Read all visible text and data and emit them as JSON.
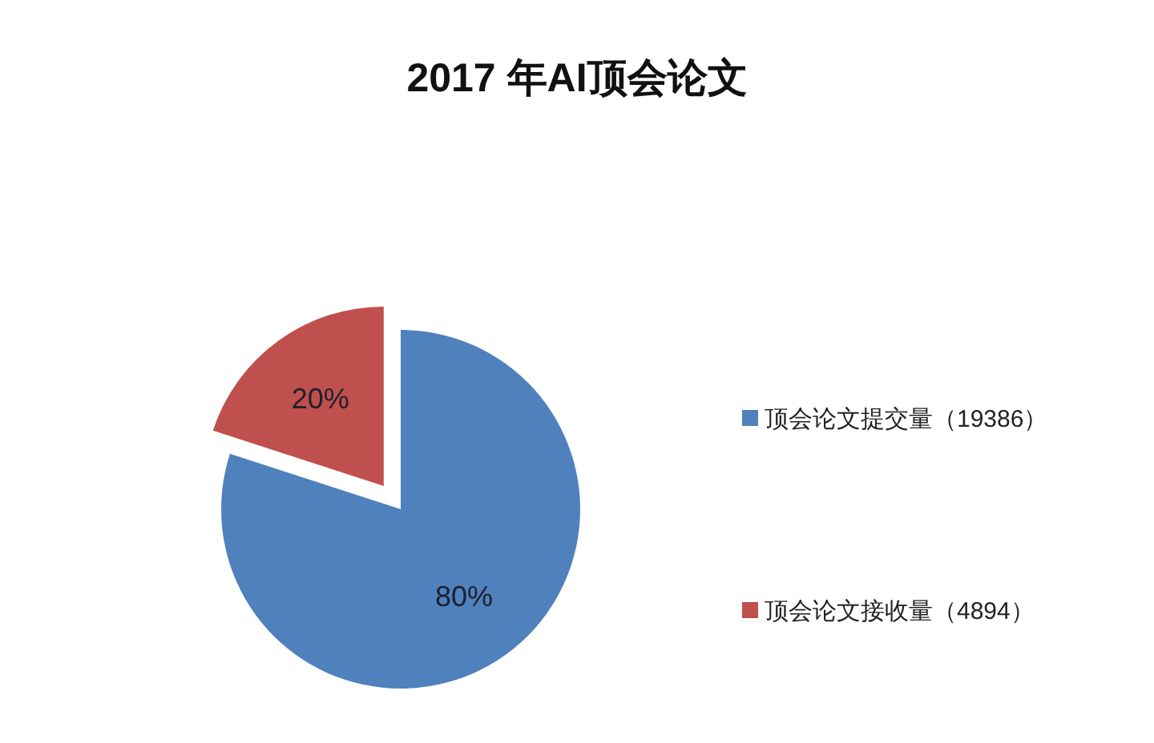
{
  "chart_data": {
    "type": "pie",
    "title": "2017 年AI顶会论文",
    "categories": [
      "顶会论文提交量（19386）",
      "顶会论文接收量（4894）"
    ],
    "values": [
      80,
      20
    ],
    "colors": [
      "#4f81bd",
      "#c0504d"
    ],
    "value_labels": [
      "80%",
      "20%"
    ],
    "legend": "right"
  }
}
